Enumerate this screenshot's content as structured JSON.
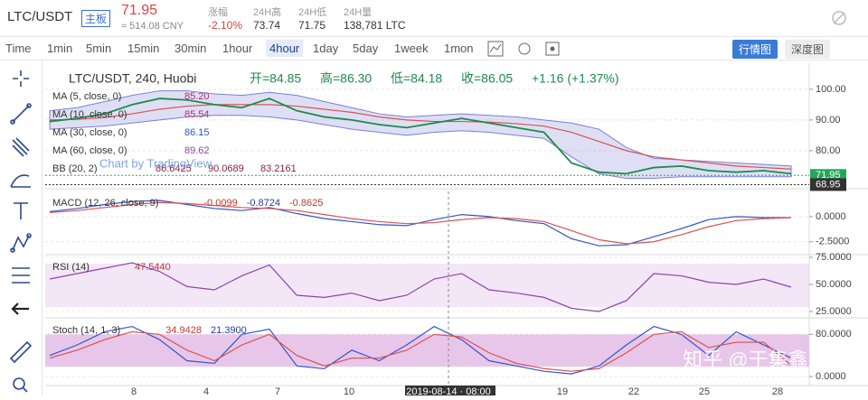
{
  "header": {
    "symbol": "LTC/USDT",
    "badge": "主板",
    "price": "71.95",
    "cny": "≈ 514.08 CNY",
    "stats": [
      {
        "label": "涨幅",
        "value": "-2.10%"
      },
      {
        "label": "24H高",
        "value": "73.74"
      },
      {
        "label": "24H低",
        "value": "71.75"
      },
      {
        "label": "24H量",
        "value": "138,781 LTC"
      }
    ]
  },
  "toolbar": {
    "intervals": [
      "Time",
      "1min",
      "5min",
      "15min",
      "30min",
      "1hour",
      "4hour",
      "1day",
      "5day",
      "1week",
      "1mon"
    ],
    "active": 6,
    "views": [
      "行情图",
      "深度图"
    ]
  },
  "chart": {
    "legend": {
      "symbol": "LTC/USDT, 240, Huobi",
      "ohlc": [
        "开=84.85",
        "高=86.30",
        "低=84.18",
        "收=86.05"
      ],
      "change": "+1.16 (+1.37%)"
    },
    "indicators": [
      {
        "name": "MA (5, close, 0)",
        "values": [
          "85.20"
        ]
      },
      {
        "name": "MA (10, close, 0)",
        "values": [
          "85.54"
        ]
      },
      {
        "name": "MA (30, close, 0)",
        "values": [
          "86.15"
        ]
      },
      {
        "name": "MA (60, close, 0)",
        "values": [
          "89.62"
        ]
      },
      {
        "name": "BB (20, 2)",
        "values": [
          "86.6425",
          "90.0689",
          "83.2161"
        ]
      }
    ],
    "credit": "Chart by TradingView",
    "panes": [
      {
        "name": "price",
        "ylim": [
          68.2,
          107.9
        ],
        "yticks": [
          {
            "value": 100,
            "label": "100.00"
          },
          {
            "value": 90,
            "label": "90.00"
          },
          {
            "value": 80,
            "label": "80.00"
          }
        ],
        "price_labels": [
          {
            "value": 71.95,
            "label": "71.95",
            "color": "#26a65b"
          },
          {
            "value": 68.95,
            "label": "68.95",
            "color": "#333333"
          }
        ],
        "band": {
          "color": "#7b7fd6",
          "upper": [
            93,
            94,
            96,
            98,
            99.5,
            99.5,
            98.5,
            98,
            99,
            98,
            96,
            94,
            92,
            91,
            91.5,
            92,
            91.5,
            91,
            90,
            89,
            87,
            81,
            77.5,
            77,
            76.5,
            76,
            75.5,
            75
          ],
          "lower": [
            87,
            87.5,
            88,
            89,
            90,
            91,
            91.5,
            91.5,
            91,
            90,
            88.5,
            87,
            86,
            85,
            86,
            86.5,
            86,
            85,
            84,
            78,
            72.5,
            71,
            71,
            71.5,
            71.5,
            71.5,
            71.5,
            71.5
          ]
        },
        "series": [
          {
            "color": "#d9534f",
            "values": [
              90,
              90.2,
              90.8,
              92,
              93.5,
              94.5,
              95,
              95,
              95,
              94.5,
              93.5,
              92.5,
              91,
              90,
              89.5,
              89.5,
              89.3,
              88.8,
              88,
              86,
              83,
              80,
              78,
              77,
              76,
              75,
              74.5,
              74
            ]
          },
          {
            "color": "#1e8a4c",
            "values": [
              89.5,
              90.5,
              92,
              95,
              97,
              96.5,
              95,
              94,
              97,
              93,
              91,
              90,
              88.5,
              87.5,
              89,
              90.5,
              89,
              87.5,
              86,
              76,
              73,
              72.5,
              74.5,
              75,
              73.5,
              73,
              73.5,
              72.5
            ]
          }
        ]
      },
      {
        "name": "MACD (12, 26, close, 9)",
        "labels": [
          "-0.0099",
          "-0.8724",
          "-0.8625"
        ],
        "ylim": [
          -3.6,
          2.5
        ],
        "yticks": [
          {
            "value": 0,
            "label": "0.0000"
          },
          {
            "value": -2.5,
            "label": "-2.5000"
          }
        ],
        "series": [
          {
            "color": "#3355cc",
            "values": [
              0.5,
              0.8,
              1.2,
              1.5,
              1.6,
              1.2,
              0.8,
              0.6,
              0.9,
              0.3,
              -0.2,
              -0.5,
              -0.8,
              -0.9,
              -0.3,
              0.2,
              0,
              -0.4,
              -0.7,
              -2.2,
              -2.9,
              -2.8,
              -2,
              -1.2,
              -0.3,
              0,
              -0.1,
              -0.1
            ]
          },
          {
            "color": "#d9534f",
            "values": [
              0.4,
              0.6,
              0.9,
              1.2,
              1.4,
              1.3,
              1.1,
              0.9,
              0.8,
              0.6,
              0.2,
              -0.2,
              -0.5,
              -0.7,
              -0.6,
              -0.3,
              -0.1,
              -0.2,
              -0.5,
              -1.4,
              -2.3,
              -2.7,
              -2.5,
              -1.8,
              -1,
              -0.4,
              -0.2,
              -0.1
            ]
          }
        ]
      },
      {
        "name": "RSI (14)",
        "labels": [
          "47.5440"
        ],
        "ylim": [
          20.8,
          76.7
        ],
        "yticks": [
          {
            "value": 75,
            "label": "75.0000"
          },
          {
            "value": 50,
            "label": "50.0000"
          },
          {
            "value": 25,
            "label": "25.0000"
          }
        ],
        "series": [
          {
            "color": "#8e44ad",
            "values": [
              55,
              60,
              65,
              70,
              62,
              48,
              45,
              58,
              68,
              40,
              38,
              42,
              35,
              40,
              55,
              60,
              45,
              42,
              38,
              28,
              25,
              35,
              60,
              58,
              52,
              50,
              55,
              47.5
            ]
          }
        ]
      },
      {
        "name": "Stoch (14, 1, 3)",
        "labels": [
          "34.9428",
          "21.3900"
        ],
        "ylim": [
          -13.7,
          109.7
        ],
        "yticks": [
          {
            "value": 80,
            "label": "80.0000"
          },
          {
            "value": 0,
            "label": "0.0000"
          }
        ],
        "series": [
          {
            "color": "#3355cc",
            "values": [
              40,
              60,
              85,
              95,
              70,
              30,
              25,
              80,
              90,
              20,
              15,
              50,
              30,
              60,
              95,
              70,
              30,
              20,
              10,
              5,
              20,
              60,
              95,
              80,
              40,
              85,
              60,
              35
            ]
          },
          {
            "color": "#d9534f",
            "values": [
              35,
              50,
              70,
              85,
              80,
              50,
              30,
              60,
              80,
              40,
              20,
              35,
              35,
              50,
              80,
              75,
              45,
              25,
              15,
              10,
              15,
              45,
              80,
              85,
              55,
              65,
              65,
              21.4
            ]
          }
        ]
      }
    ],
    "xlabels": [
      "8",
      "4",
      "7",
      "10",
      "2019-08-14 · 08:00",
      "19",
      "22",
      "25",
      "28"
    ]
  },
  "watermark": "知乎 @于集鑫"
}
